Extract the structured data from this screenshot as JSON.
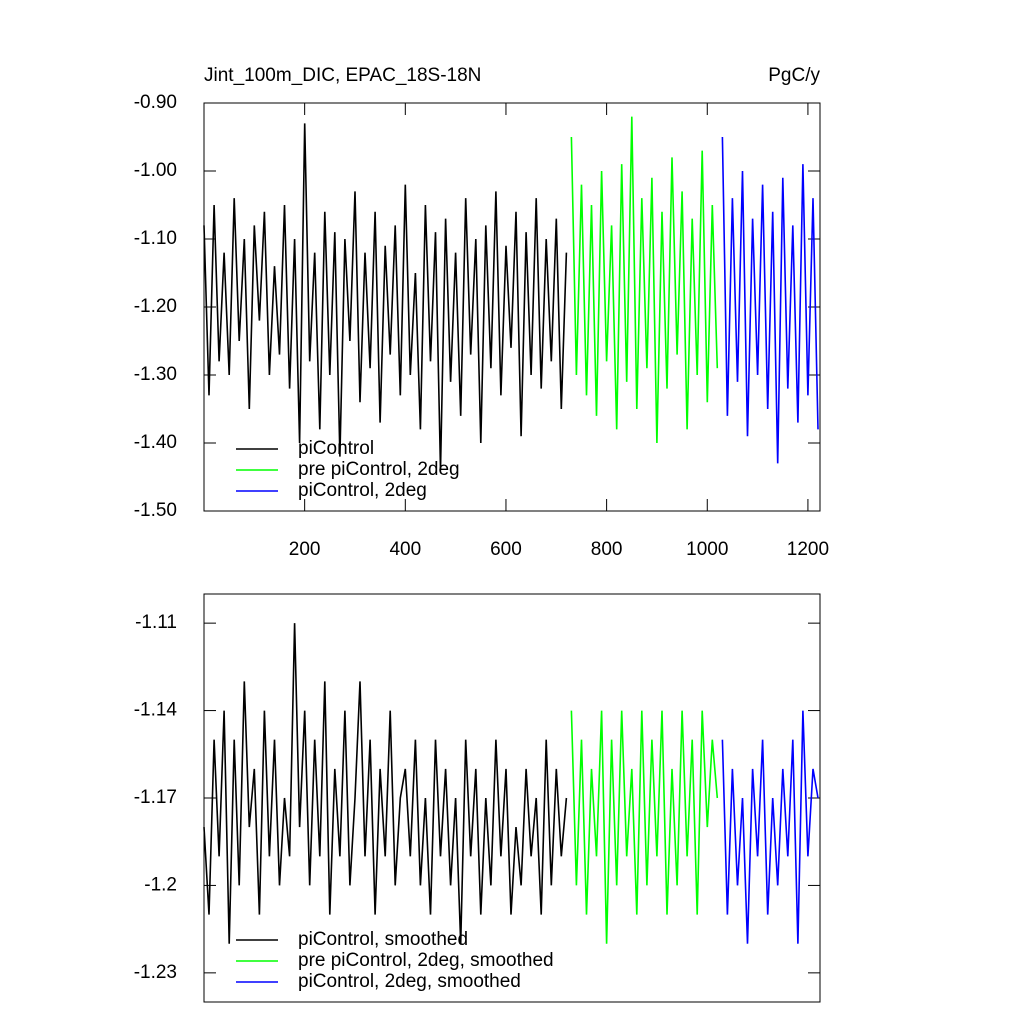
{
  "chart_data": [
    {
      "type": "line",
      "title": "Jint_100m_DIC, EPAC_18S-18N",
      "units": "PgC/y",
      "xlim": [
        0,
        1224
      ],
      "ylim": [
        -1.5,
        -0.9
      ],
      "xticks": [
        200,
        400,
        600,
        800,
        1000,
        1200
      ],
      "yticks": [
        {
          "value": -1.5,
          "label": "-1.50"
        },
        {
          "value": -1.4,
          "label": "-1.40"
        },
        {
          "value": -1.3,
          "label": "-1.30"
        },
        {
          "value": -1.2,
          "label": "-1.20"
        },
        {
          "value": -1.1,
          "label": "-1.10"
        },
        {
          "value": -1.0,
          "label": "-1.00"
        },
        {
          "value": -0.9,
          "label": "-0.90"
        }
      ],
      "legend": "lower-left",
      "series": [
        {
          "name": "piControl",
          "color": "#000000",
          "x": [
            0,
            10,
            20,
            30,
            40,
            50,
            60,
            70,
            80,
            90,
            100,
            110,
            120,
            130,
            140,
            150,
            160,
            170,
            180,
            190,
            200,
            210,
            220,
            230,
            240,
            250,
            260,
            270,
            280,
            290,
            300,
            310,
            320,
            330,
            340,
            350,
            360,
            370,
            380,
            390,
            400,
            410,
            420,
            430,
            440,
            450,
            460,
            470,
            480,
            490,
            500,
            510,
            520,
            530,
            540,
            550,
            560,
            570,
            580,
            590,
            600,
            610,
            620,
            630,
            640,
            650,
            660,
            670,
            680,
            690,
            700,
            710,
            720
          ],
          "values": [
            -1.08,
            -1.33,
            -1.05,
            -1.28,
            -1.12,
            -1.3,
            -1.04,
            -1.25,
            -1.1,
            -1.35,
            -1.08,
            -1.22,
            -1.06,
            -1.3,
            -1.14,
            -1.27,
            -1.05,
            -1.32,
            -1.1,
            -1.4,
            -0.93,
            -1.28,
            -1.12,
            -1.38,
            -1.06,
            -1.3,
            -1.09,
            -1.42,
            -1.1,
            -1.25,
            -1.03,
            -1.34,
            -1.12,
            -1.29,
            -1.06,
            -1.37,
            -1.11,
            -1.27,
            -1.08,
            -1.33,
            -1.02,
            -1.3,
            -1.15,
            -1.38,
            -1.05,
            -1.28,
            -1.09,
            -1.44,
            -1.07,
            -1.31,
            -1.12,
            -1.36,
            -1.04,
            -1.27,
            -1.1,
            -1.4,
            -1.08,
            -1.29,
            -1.03,
            -1.33,
            -1.11,
            -1.26,
            -1.06,
            -1.39,
            -1.09,
            -1.3,
            -1.04,
            -1.32,
            -1.1,
            -1.28,
            -1.07,
            -1.35,
            -1.12
          ]
        },
        {
          "name": "pre piControl, 2deg",
          "color": "#00ff00",
          "x": [
            730,
            740,
            750,
            760,
            770,
            780,
            790,
            800,
            810,
            820,
            830,
            840,
            850,
            860,
            870,
            880,
            890,
            900,
            910,
            920,
            930,
            940,
            950,
            960,
            970,
            980,
            990,
            1000,
            1010,
            1020
          ],
          "values": [
            -0.95,
            -1.3,
            -1.02,
            -1.33,
            -1.05,
            -1.36,
            -1.0,
            -1.28,
            -1.08,
            -1.38,
            -0.99,
            -1.31,
            -0.92,
            -1.35,
            -1.04,
            -1.29,
            -1.01,
            -1.4,
            -1.06,
            -1.32,
            -0.98,
            -1.27,
            -1.03,
            -1.38,
            -1.07,
            -1.3,
            -0.97,
            -1.34,
            -1.05,
            -1.29
          ]
        },
        {
          "name": "piControl, 2deg",
          "color": "#0000ff",
          "x": [
            1030,
            1040,
            1050,
            1060,
            1070,
            1080,
            1090,
            1100,
            1110,
            1120,
            1130,
            1140,
            1150,
            1160,
            1170,
            1180,
            1190,
            1200,
            1210,
            1220
          ],
          "values": [
            -0.95,
            -1.36,
            -1.04,
            -1.31,
            -1.0,
            -1.39,
            -1.07,
            -1.3,
            -1.02,
            -1.35,
            -1.06,
            -1.43,
            -1.01,
            -1.32,
            -1.08,
            -1.37,
            -0.99,
            -1.33,
            -1.04,
            -1.38
          ]
        }
      ]
    },
    {
      "type": "line",
      "xlim": [
        0,
        1224
      ],
      "ylim": [
        -1.24,
        -1.1
      ],
      "yticks": [
        -1.23,
        -1.2,
        -1.17,
        -1.14,
        -1.11
      ],
      "legend": "lower-left",
      "series": [
        {
          "name": "piControl, smoothed",
          "color": "#000000",
          "x": [
            0,
            10,
            20,
            30,
            40,
            50,
            60,
            70,
            80,
            90,
            100,
            110,
            120,
            130,
            140,
            150,
            160,
            170,
            180,
            190,
            200,
            210,
            220,
            230,
            240,
            250,
            260,
            270,
            280,
            290,
            300,
            310,
            320,
            330,
            340,
            350,
            360,
            370,
            380,
            390,
            400,
            410,
            420,
            430,
            440,
            450,
            460,
            470,
            480,
            490,
            500,
            510,
            520,
            530,
            540,
            550,
            560,
            570,
            580,
            590,
            600,
            610,
            620,
            630,
            640,
            650,
            660,
            670,
            680,
            690,
            700,
            710,
            720
          ],
          "values": [
            -1.18,
            -1.21,
            -1.15,
            -1.19,
            -1.14,
            -1.22,
            -1.15,
            -1.2,
            -1.13,
            -1.18,
            -1.16,
            -1.21,
            -1.14,
            -1.19,
            -1.15,
            -1.2,
            -1.17,
            -1.19,
            -1.11,
            -1.18,
            -1.14,
            -1.2,
            -1.15,
            -1.19,
            -1.13,
            -1.21,
            -1.16,
            -1.19,
            -1.14,
            -1.2,
            -1.17,
            -1.13,
            -1.19,
            -1.15,
            -1.21,
            -1.16,
            -1.19,
            -1.14,
            -1.2,
            -1.17,
            -1.16,
            -1.19,
            -1.15,
            -1.2,
            -1.17,
            -1.21,
            -1.15,
            -1.19,
            -1.16,
            -1.2,
            -1.17,
            -1.22,
            -1.15,
            -1.19,
            -1.16,
            -1.21,
            -1.17,
            -1.2,
            -1.15,
            -1.19,
            -1.16,
            -1.21,
            -1.18,
            -1.2,
            -1.16,
            -1.19,
            -1.17,
            -1.21,
            -1.15,
            -1.2,
            -1.16,
            -1.19,
            -1.17
          ]
        },
        {
          "name": "pre piControl, 2deg, smoothed",
          "color": "#00ff00",
          "x": [
            730,
            740,
            750,
            760,
            770,
            780,
            790,
            800,
            810,
            820,
            830,
            840,
            850,
            860,
            870,
            880,
            890,
            900,
            910,
            920,
            930,
            940,
            950,
            960,
            970,
            980,
            990,
            1000,
            1010,
            1020
          ],
          "values": [
            -1.14,
            -1.2,
            -1.15,
            -1.21,
            -1.16,
            -1.19,
            -1.14,
            -1.22,
            -1.15,
            -1.2,
            -1.14,
            -1.19,
            -1.16,
            -1.21,
            -1.14,
            -1.2,
            -1.15,
            -1.19,
            -1.14,
            -1.21,
            -1.16,
            -1.2,
            -1.14,
            -1.19,
            -1.15,
            -1.21,
            -1.14,
            -1.18,
            -1.15,
            -1.17
          ]
        },
        {
          "name": "piControl, 2deg, smoothed",
          "color": "#0000ff",
          "x": [
            1030,
            1040,
            1050,
            1060,
            1070,
            1080,
            1090,
            1100,
            1110,
            1120,
            1130,
            1140,
            1150,
            1160,
            1170,
            1180,
            1190,
            1200,
            1210,
            1220
          ],
          "values": [
            -1.15,
            -1.21,
            -1.16,
            -1.2,
            -1.17,
            -1.22,
            -1.16,
            -1.19,
            -1.15,
            -1.21,
            -1.17,
            -1.2,
            -1.16,
            -1.19,
            -1.15,
            -1.22,
            -1.14,
            -1.19,
            -1.16,
            -1.17
          ]
        }
      ]
    }
  ]
}
